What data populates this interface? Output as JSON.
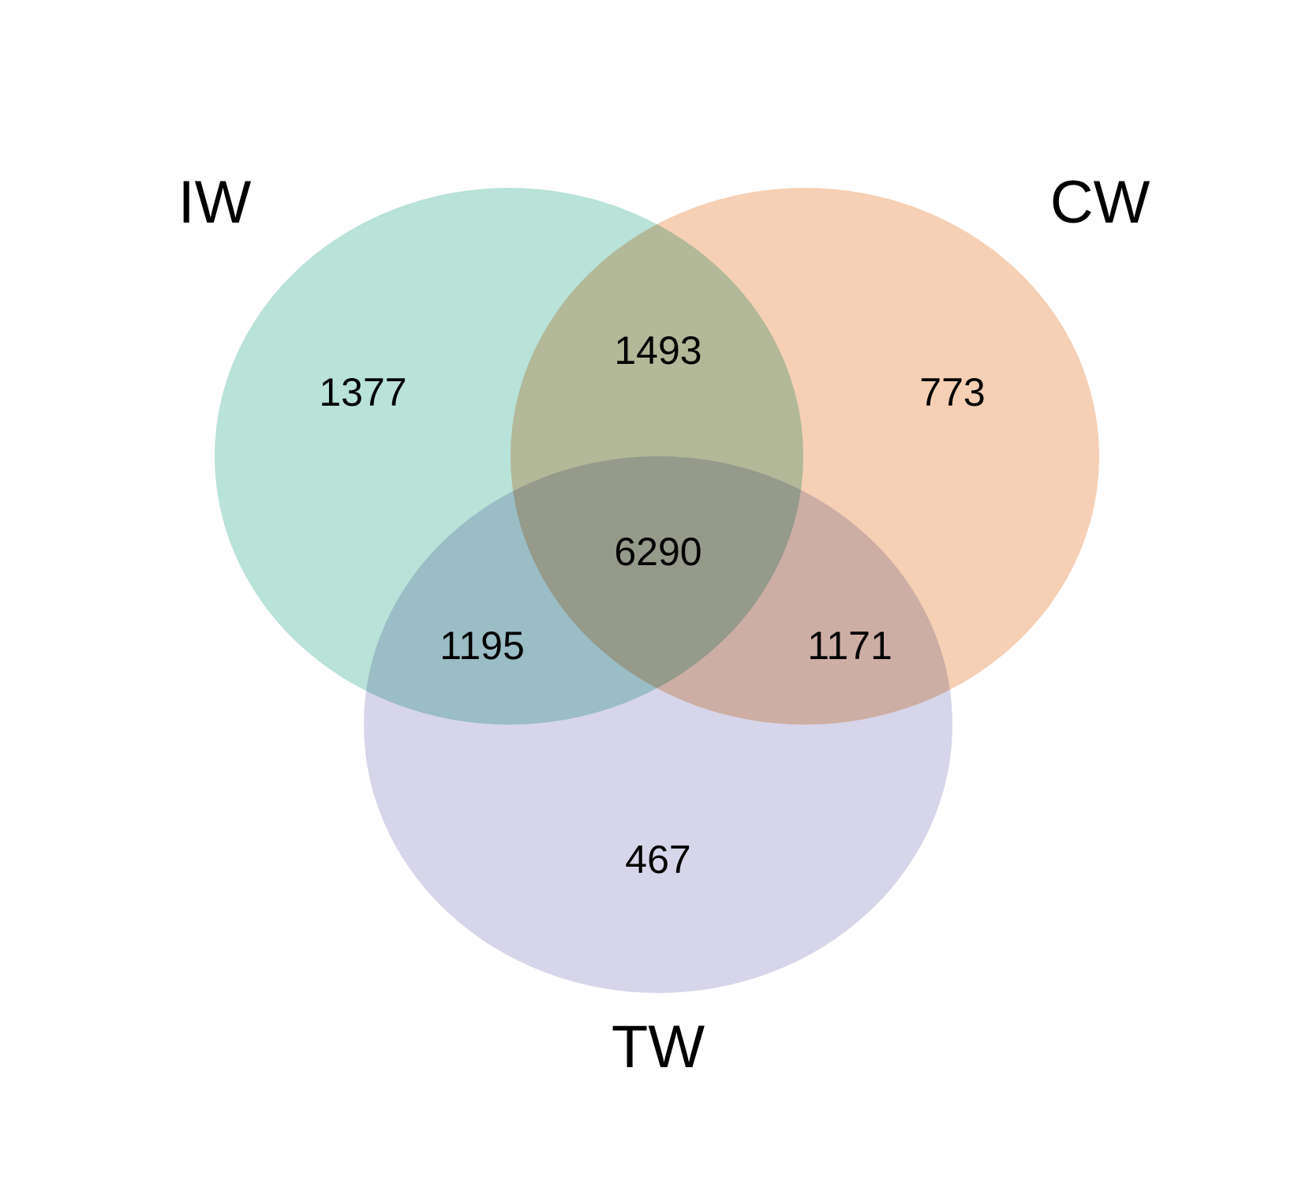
{
  "sets": [
    {
      "id": "iw",
      "label": "IW",
      "color": "#b9e2d8"
    },
    {
      "id": "cw",
      "label": "CW",
      "color": "#f5d0b4"
    },
    {
      "id": "tw",
      "label": "TW",
      "color": "#d6d5e9"
    }
  ],
  "regions": {
    "iw_only": "1377",
    "cw_only": "773",
    "tw_only": "467",
    "iw_cw": "1493",
    "iw_tw": "1195",
    "cw_tw": "1171",
    "iw_cw_tw": "6290"
  }
}
